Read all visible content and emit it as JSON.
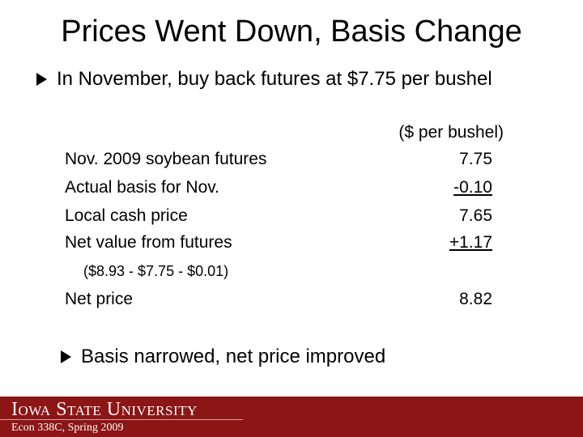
{
  "title": "Prices Went Down, Basis Change",
  "bullets": [
    "In November, buy back futures at $7.75 per bushel",
    "Basis narrowed, net price improved"
  ],
  "table": {
    "header": "($ per bushel)",
    "rows": [
      [
        "Nov. 2009 soybean futures",
        "7.75"
      ],
      [
        "Actual basis for Nov.",
        "-0.10"
      ],
      [
        "Local cash price",
        "7.65"
      ],
      [
        "Net value from futures",
        "+1.17"
      ]
    ],
    "note": "($8.93 - $7.75 - $0.01)",
    "total": [
      "Net price",
      "8.82"
    ]
  },
  "footer": {
    "university": "Iowa State University",
    "course": "Econ 338C, Spring 2009"
  }
}
